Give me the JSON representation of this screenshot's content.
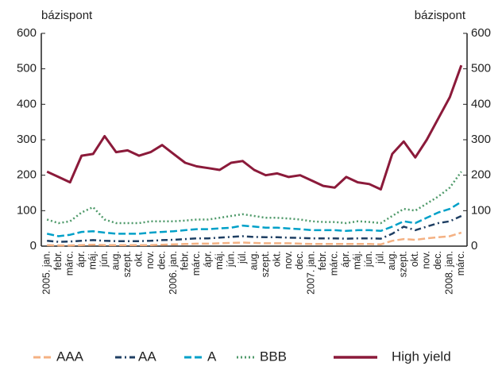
{
  "chart_data": {
    "type": "line",
    "y_label": "bázispont",
    "y2_label": "bázispont",
    "categories": [
      "2005. jan.",
      "febr.",
      "márc.",
      "ápr.",
      "máj.",
      "jún.",
      "aug.",
      "szept.",
      "okt.",
      "nov.",
      "dec.",
      "2006. jan.",
      "febr.",
      "márc.",
      "ápr.",
      "máj.",
      "jún.",
      "júl.",
      "aug.",
      "szept.",
      "okt.",
      "nov.",
      "dec.",
      "2007. jan.",
      "febr.",
      "márc.",
      "ápr.",
      "máj.",
      "jún.",
      "júl.",
      "aug.",
      "szept.",
      "okt.",
      "nov.",
      "dec.",
      "2008. jan.",
      "márc."
    ],
    "series": [
      {
        "name": "AAA",
        "color": "#f4b183",
        "dash": "9,4",
        "width": 2.5,
        "values": [
          3,
          2,
          2,
          3,
          4,
          3,
          3,
          3,
          3,
          3,
          4,
          5,
          6,
          7,
          7,
          8,
          9,
          10,
          9,
          8,
          8,
          8,
          7,
          6,
          6,
          6,
          6,
          6,
          6,
          5,
          15,
          20,
          18,
          22,
          25,
          28,
          38
        ]
      },
      {
        "name": "AA",
        "color": "#1f3f63",
        "dash": "8,4,2,4",
        "width": 2.5,
        "values": [
          15,
          12,
          13,
          15,
          17,
          15,
          14,
          14,
          14,
          15,
          17,
          18,
          20,
          22,
          22,
          24,
          26,
          28,
          26,
          25,
          25,
          24,
          23,
          22,
          22,
          22,
          21,
          22,
          22,
          21,
          35,
          55,
          45,
          55,
          65,
          70,
          85
        ]
      },
      {
        "name": "A",
        "color": "#00a0c8",
        "dash": "9,4",
        "width": 2.5,
        "values": [
          35,
          28,
          32,
          40,
          42,
          38,
          35,
          35,
          35,
          38,
          40,
          42,
          45,
          48,
          48,
          50,
          52,
          58,
          55,
          52,
          52,
          50,
          48,
          45,
          45,
          45,
          43,
          45,
          45,
          43,
          55,
          70,
          65,
          80,
          95,
          105,
          125
        ]
      },
      {
        "name": "BBB",
        "color": "#4f9a6a",
        "dash": "2,3",
        "width": 2.5,
        "values": [
          75,
          65,
          70,
          95,
          110,
          75,
          65,
          65,
          65,
          70,
          70,
          70,
          72,
          75,
          75,
          80,
          85,
          90,
          85,
          80,
          80,
          78,
          75,
          70,
          68,
          68,
          65,
          70,
          68,
          65,
          85,
          105,
          100,
          120,
          140,
          165,
          210
        ]
      },
      {
        "name": "High yield",
        "color": "#8b1a3a",
        "dash": "none",
        "width": 3,
        "values": [
          210,
          195,
          180,
          255,
          260,
          310,
          265,
          270,
          255,
          265,
          285,
          260,
          235,
          225,
          220,
          215,
          235,
          240,
          215,
          200,
          205,
          195,
          200,
          185,
          170,
          165,
          195,
          180,
          175,
          160,
          260,
          295,
          250,
          300,
          360,
          420,
          510
        ]
      }
    ],
    "ylim": [
      0,
      600
    ],
    "yticks": [
      0,
      100,
      200,
      300,
      400,
      500,
      600
    ],
    "y2lim": [
      0,
      600
    ],
    "y2ticks": [
      0,
      100,
      200,
      300,
      400,
      500,
      600
    ]
  }
}
